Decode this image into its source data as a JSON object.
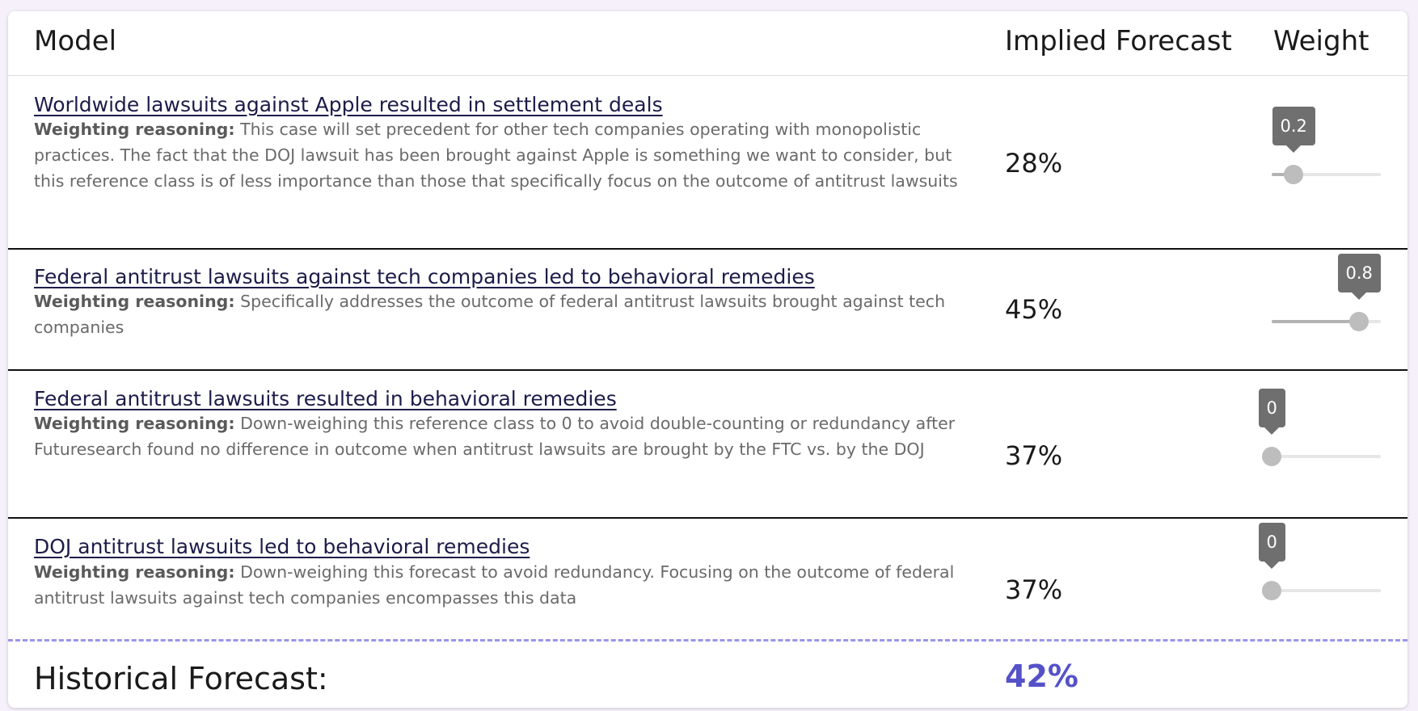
{
  "header": {
    "model_label": "Model",
    "forecast_label": "Implied Forecast",
    "weight_label": "Weight"
  },
  "reasoning_label": "Weighting reasoning:",
  "rows": [
    {
      "title": "Worldwide lawsuits against Apple resulted in settlement deals",
      "reasoning": "This case will set precedent for other tech companies operating with monopolistic practices. The fact that the DOJ lawsuit has been brought against Apple is something we want to consider, but this reference class is of less importance than those that specifically focus on the outcome of antitrust lawsuits",
      "forecast": "28%",
      "weight": 0.2,
      "weight_label": "0.2"
    },
    {
      "title": "Federal antitrust lawsuits against tech companies led to behavioral remedies",
      "reasoning": "Specifically addresses the outcome of federal antitrust lawsuits brought against tech companies",
      "forecast": "45%",
      "weight": 0.8,
      "weight_label": "0.8"
    },
    {
      "title": "Federal antitrust lawsuits resulted in behavioral remedies",
      "reasoning": "Down-weighing this reference class to 0 to avoid double-counting or redundancy after Futuresearch found no difference in outcome when antitrust lawsuits are brought by the FTC vs. by the DOJ",
      "forecast": "37%",
      "weight": 0,
      "weight_label": "0"
    },
    {
      "title": "DOJ antitrust lawsuits led to behavioral remedies",
      "reasoning": "Down-weighing this forecast to avoid redundancy. Focusing on the outcome of federal antitrust lawsuits against tech companies encompasses this data",
      "forecast": "37%",
      "weight": 0,
      "weight_label": "0"
    }
  ],
  "footer": {
    "label": "Historical Forecast:",
    "value": "42%"
  },
  "colors": {
    "accent": "#5552c8",
    "link": "#1c1c4a",
    "tooltip": "#6f6f6f",
    "dashed_divider": "#9a95e8"
  }
}
